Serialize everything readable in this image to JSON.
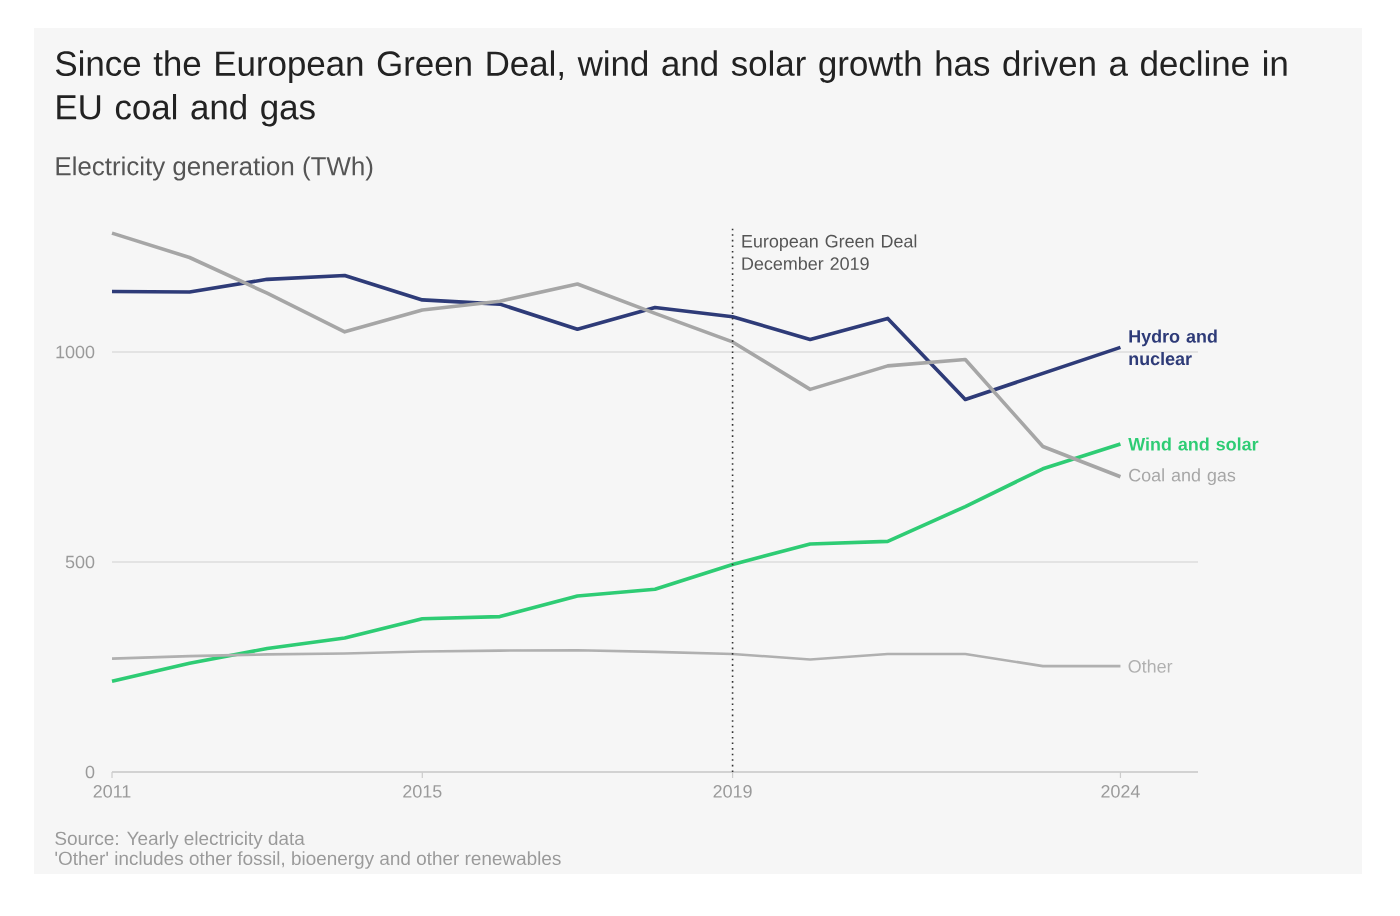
{
  "chart_data": {
    "type": "line",
    "title": "Since the European Green Deal, wind and solar growth has driven a decline in EU coal and gas",
    "subtitle": "Electricity generation (TWh)",
    "x": [
      2011,
      2012,
      2013,
      2014,
      2015,
      2016,
      2017,
      2018,
      2019,
      2020,
      2021,
      2022,
      2023,
      2024
    ],
    "series": [
      {
        "name": "Hydro and nuclear",
        "color": "#2e3b78",
        "values": [
          1144,
          1143,
          1173,
          1182,
          1124,
          1114,
          1054,
          1106,
          1084,
          1030,
          1080,
          887,
          949,
          1011
        ]
      },
      {
        "name": "Wind and solar",
        "color": "#2ecc74",
        "values": [
          216,
          259,
          294,
          319,
          365,
          370,
          419,
          435,
          494,
          543,
          549,
          632,
          722,
          781
        ]
      },
      {
        "name": "Coal and gas",
        "color": "#a6a6a6",
        "values": [
          1283,
          1225,
          1140,
          1048,
          1100,
          1121,
          1162,
          1092,
          1024,
          911,
          967,
          982,
          775,
          703
        ]
      },
      {
        "name": "Other",
        "color": "#b0b0b0",
        "values": [
          270,
          276,
          280,
          282,
          287,
          289,
          290,
          286,
          281,
          268,
          281,
          281,
          252,
          252
        ]
      }
    ],
    "xlim": [
      2011,
      2025
    ],
    "ylim": [
      0,
      1300
    ],
    "xticks": [
      2011,
      2015,
      2019,
      2024
    ],
    "yticks": [
      0,
      500,
      1000
    ],
    "grid": "y",
    "marker": "none",
    "line_style": "solid",
    "ref_lines": [
      {
        "axis": "x",
        "value": 2019,
        "label": "European Green Deal December 2019",
        "color": "#333333",
        "line_style": "dotted"
      }
    ],
    "annotations": [
      "Source: Yearly electricity data",
      "'Other' includes other fossil, bioenergy and other renewables"
    ]
  }
}
